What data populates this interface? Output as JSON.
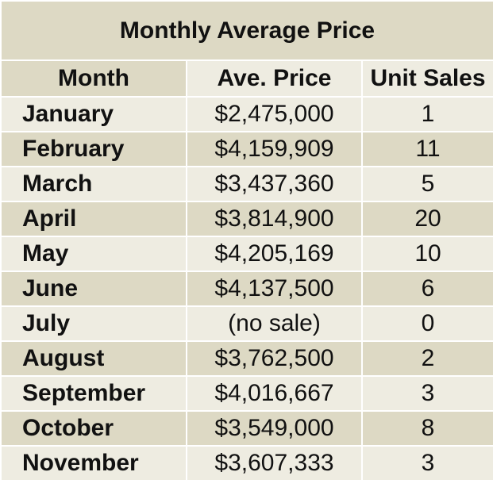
{
  "title": "Monthly Average Price",
  "headers": {
    "month": "Month",
    "price": "Ave. Price",
    "sales": "Unit Sales"
  },
  "rows": [
    {
      "month": "January",
      "price": "$2,475,000",
      "sales": "1"
    },
    {
      "month": "February",
      "price": "$4,159,909",
      "sales": "11"
    },
    {
      "month": "March",
      "price": "$3,437,360",
      "sales": "5"
    },
    {
      "month": "April",
      "price": "$3,814,900",
      "sales": "20"
    },
    {
      "month": "May",
      "price": "$4,205,169",
      "sales": "10"
    },
    {
      "month": "June",
      "price": "$4,137,500",
      "sales": "6"
    },
    {
      "month": "July",
      "price": "(no sale)",
      "sales": "0"
    },
    {
      "month": "August",
      "price": "$3,762,500",
      "sales": "2"
    },
    {
      "month": "September",
      "price": "$4,016,667",
      "sales": "3"
    },
    {
      "month": "October",
      "price": "$3,549,000",
      "sales": "8"
    },
    {
      "month": "November",
      "price": "$3,607,333",
      "sales": "3"
    }
  ],
  "colors": {
    "dark_row": "#ddd9c4",
    "light_row": "#eeece1",
    "text": "#111111",
    "grid": "#ffffff"
  }
}
